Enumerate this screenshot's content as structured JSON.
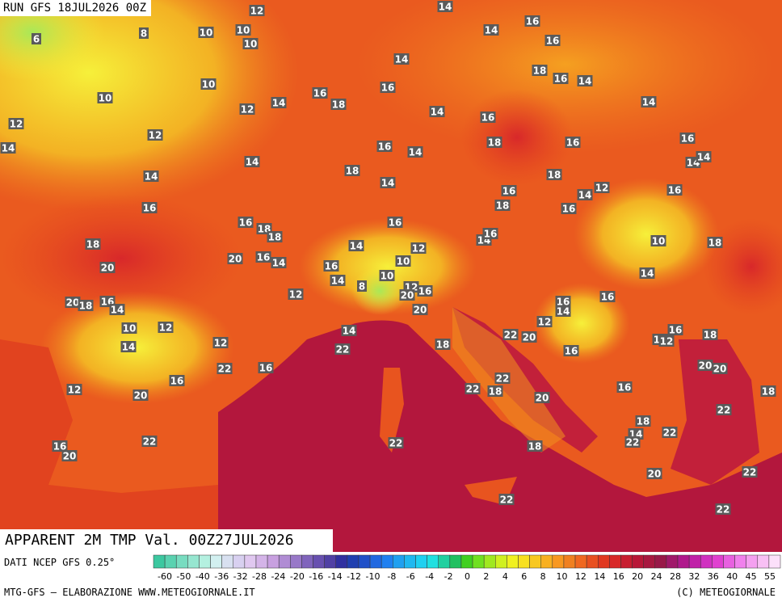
{
  "header": {
    "run": "RUN GFS 18JUL2026 00Z"
  },
  "map": {
    "title": "APPARENT 2M TMP Val. 00Z27JUL2026",
    "labels": [
      12,
      14,
      16,
      14,
      16,
      6,
      8,
      10,
      10,
      10,
      14,
      18,
      14,
      10,
      16,
      16,
      10,
      12,
      14,
      16,
      18,
      14,
      14,
      16,
      12,
      12,
      14,
      16,
      14,
      18,
      16,
      16,
      14,
      18,
      14,
      14,
      14,
      14,
      18,
      16,
      14,
      12,
      16,
      16,
      18,
      16,
      16,
      16,
      18,
      18,
      14,
      16,
      10,
      18,
      18,
      14,
      12,
      20,
      16,
      14,
      16,
      10,
      20,
      14,
      14,
      10,
      12,
      8,
      12,
      16,
      20,
      16,
      20,
      18,
      16,
      14,
      16,
      14,
      20,
      12,
      10,
      12,
      14,
      22,
      20,
      16,
      14,
      12,
      18,
      14,
      12,
      18,
      16,
      22,
      16,
      22,
      20,
      20,
      16,
      22,
      22,
      18,
      16,
      12,
      20,
      20,
      18,
      22,
      18,
      22,
      14,
      22,
      22,
      22,
      18,
      16,
      20,
      20,
      22,
      22,
      22
    ]
  },
  "legend": {
    "source": "DATI NCEP GFS 0.25°",
    "ticks": [
      -60,
      -50,
      -40,
      -36,
      -32,
      -28,
      -24,
      -20,
      -16,
      -14,
      -12,
      -10,
      -8,
      -6,
      -4,
      -2,
      0,
      2,
      4,
      6,
      8,
      10,
      12,
      14,
      16,
      20,
      24,
      28,
      32,
      36,
      40,
      45,
      55
    ]
  },
  "footer": {
    "left": "MTG-GFS — ELABORAZIONE WWW.METEOGIORNALE.IT",
    "right": "(C) METEOGIORNALE"
  }
}
